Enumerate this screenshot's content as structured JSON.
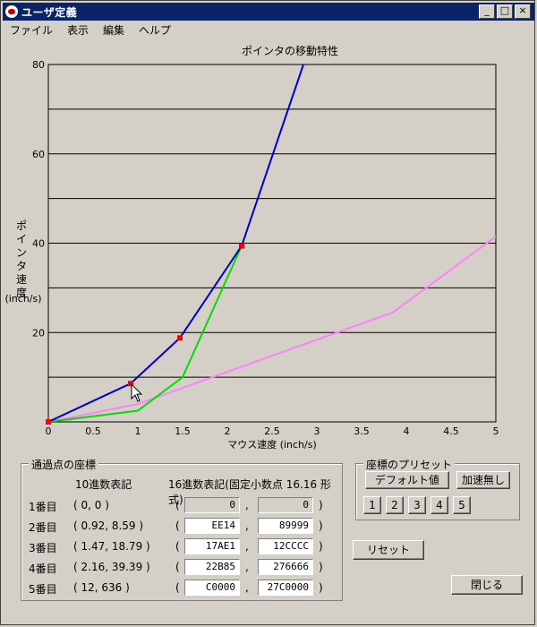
{
  "window": {
    "title": "ユーザ定義"
  },
  "menu": [
    "ファイル",
    "表示",
    "編集",
    "ヘルプ"
  ],
  "chart_data": {
    "type": "line",
    "title": "ポインタの移動特性",
    "xlabel": "マウス速度 (inch/s)",
    "ylabel": [
      "ポ",
      "イ",
      "ン",
      "タ",
      "速",
      "度"
    ],
    "yunit": "(inch/s)",
    "xlim": [
      0,
      5
    ],
    "ylim": [
      0,
      80
    ],
    "xticks": [
      "0",
      "0.5",
      "1",
      "1.5",
      "2",
      "2.5",
      "3",
      "3.5",
      "4",
      "4.5",
      "5"
    ],
    "yticks": [
      "20",
      "40",
      "60",
      "80"
    ],
    "grid": true,
    "series": [
      {
        "color": "#0000cc",
        "points": [
          [
            0,
            0
          ],
          [
            0.92,
            8.59
          ],
          [
            1.47,
            18.79
          ],
          [
            2.16,
            39.39
          ],
          [
            2.85,
            80
          ]
        ]
      },
      {
        "color": "#00dd00",
        "points": [
          [
            0,
            0
          ],
          [
            1,
            2.5
          ],
          [
            1.5,
            10
          ],
          [
            2.16,
            39.39
          ]
        ]
      },
      {
        "color": "#ff80ff",
        "points": [
          [
            0,
            0
          ],
          [
            1,
            4
          ],
          [
            3.85,
            24.5
          ],
          [
            5,
            41.5
          ]
        ]
      }
    ],
    "markers": [
      [
        0,
        0
      ],
      [
        0.92,
        8.59
      ],
      [
        1.47,
        18.79
      ],
      [
        2.16,
        39.39
      ]
    ],
    "marker_color": "#ff0000"
  },
  "points_group": {
    "title": "通過点の座標",
    "dec_header": "10進数表記",
    "hex_header": "16進数表記(固定小数点 16.16 形式)",
    "rows": [
      {
        "label": "1番目",
        "dec": "( 0, 0 )",
        "hex1": "0",
        "hex2": "0",
        "readonly": true
      },
      {
        "label": "2番目",
        "dec": "( 0.92, 8.59 )",
        "hex1": "EE14",
        "hex2": "89999",
        "readonly": false
      },
      {
        "label": "3番目",
        "dec": "( 1.47, 18.79 )",
        "hex1": "17AE1",
        "hex2": "12CCCC",
        "readonly": false
      },
      {
        "label": "4番目",
        "dec": "( 2.16, 39.39 )",
        "hex1": "22B85",
        "hex2": "276666",
        "readonly": false
      },
      {
        "label": "5番目",
        "dec": "( 12, 636 )",
        "hex1": "C0000",
        "hex2": "27C0000",
        "readonly": false
      }
    ],
    "paren_open": "(",
    "comma": ",",
    "paren_close": ")"
  },
  "presets": {
    "title": "座標のプリセット",
    "default_label": "デフォルト値",
    "noaccel_label": "加速無し",
    "numbers": [
      "1",
      "2",
      "3",
      "4",
      "5"
    ]
  },
  "reset_label": "リセット",
  "close_label": "閉じる"
}
